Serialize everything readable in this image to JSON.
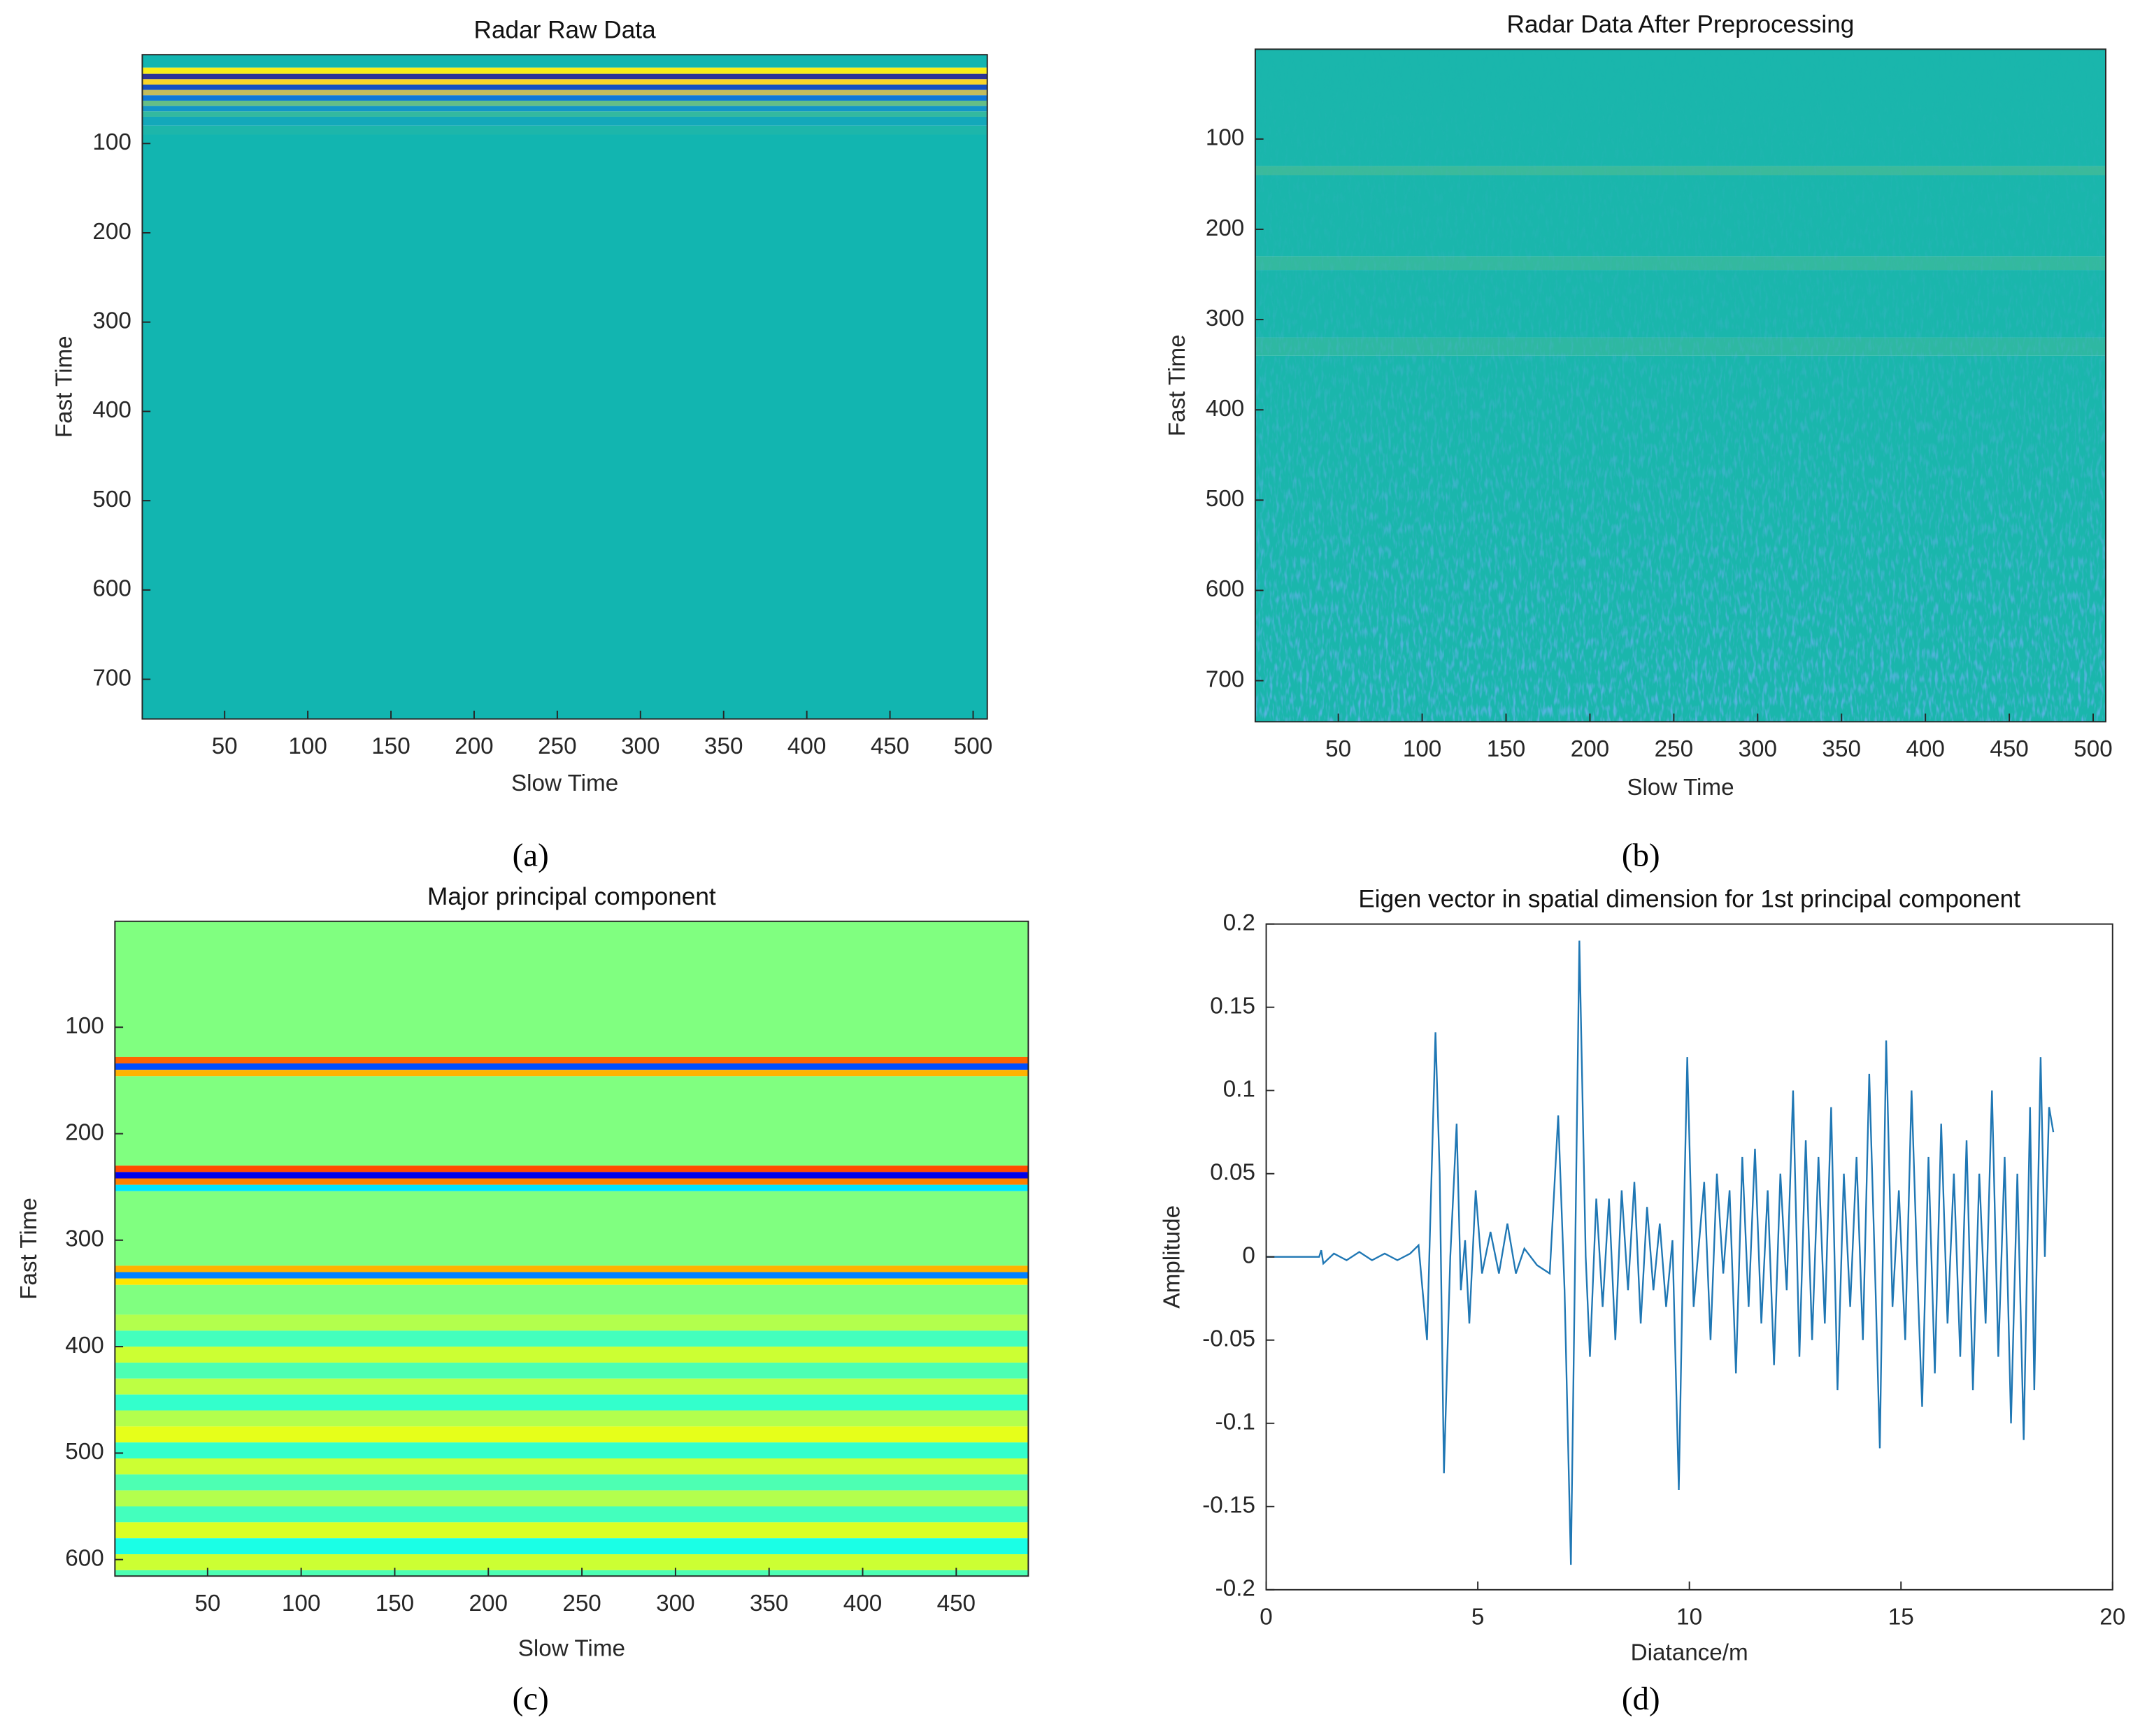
{
  "chart_data": [
    {
      "type": "heatmap",
      "title": "Radar Raw Data",
      "xlabel": "Slow Time",
      "ylabel": "Fast Time",
      "caption": "(a)",
      "xlim": [
        0.5,
        508.5
      ],
      "ylim": [
        0.5,
        744.5
      ],
      "xticks": [
        50,
        100,
        150,
        200,
        250,
        300,
        350,
        400,
        450,
        500
      ],
      "yticks": [
        100,
        200,
        300,
        400,
        500,
        600,
        700
      ],
      "y_reversed": true,
      "colormap": "parula",
      "clim": [
        -1,
        1
      ],
      "rows": [
        0.5,
        15,
        22,
        28,
        34,
        40,
        46,
        52,
        58,
        64,
        70,
        80,
        90
      ],
      "values": [
        0,
        0.95,
        -0.95,
        0.85,
        -0.8,
        0.6,
        -0.45,
        0.3,
        -0.2,
        0.12,
        -0.08,
        0.04,
        0
      ]
    },
    {
      "type": "heatmap",
      "title": "Radar Data After Preprocessing",
      "xlabel": "Slow Time",
      "ylabel": "Fast Time",
      "caption": "(b)",
      "xlim": [
        0.5,
        507.5
      ],
      "ylim": [
        0.5,
        745.5
      ],
      "xticks": [
        50,
        100,
        150,
        200,
        250,
        300,
        350,
        400,
        450,
        500
      ],
      "yticks": [
        100,
        200,
        300,
        400,
        500,
        600,
        700
      ],
      "y_reversed": true,
      "colormap": "parula",
      "clim": [
        -1,
        1
      ],
      "noise": true,
      "rows": [
        0.5,
        130,
        140,
        230,
        245,
        320,
        340
      ],
      "values": [
        0.03,
        0.15,
        0.03,
        0.12,
        0.03,
        0.1,
        0.03
      ]
    },
    {
      "type": "heatmap",
      "title": "Major principal component",
      "xlabel": "Slow Time",
      "ylabel": "Fast Time",
      "caption": "(c)",
      "xlim": [
        0.5,
        488.5
      ],
      "ylim": [
        0.5,
        615.5
      ],
      "xticks": [
        50,
        100,
        150,
        200,
        250,
        300,
        350,
        400,
        450
      ],
      "yticks": [
        100,
        200,
        300,
        400,
        500,
        600
      ],
      "y_reversed": true,
      "colormap": "jet",
      "clim": [
        -1,
        1
      ],
      "rows": [
        0.5,
        128,
        134,
        140,
        146,
        230,
        236,
        242,
        248,
        254,
        324,
        330,
        336,
        342,
        370,
        385,
        400,
        415,
        430,
        445,
        460,
        475,
        490,
        505,
        520,
        535,
        550,
        565,
        580,
        595,
        610
      ],
      "values": [
        0,
        0.55,
        -0.6,
        0.4,
        0,
        0.6,
        -0.8,
        0.5,
        -0.3,
        0,
        0.4,
        -0.5,
        0.3,
        0,
        0.1,
        -0.12,
        0.15,
        -0.1,
        0.12,
        -0.15,
        0.1,
        0.2,
        -0.15,
        0.15,
        -0.1,
        0.1,
        -0.12,
        0.18,
        -0.2,
        0.15,
        -0.1
      ]
    },
    {
      "type": "line",
      "title": "Eigen vector in spatial dimension for 1st principal component",
      "xlabel": "Diatance/m",
      "ylabel": "Amplitude",
      "caption": "(d)",
      "xlim": [
        0,
        20
      ],
      "ylim": [
        -0.2,
        0.2
      ],
      "xticks": [
        0,
        5,
        10,
        15,
        20
      ],
      "yticks": [
        0.2,
        0.15,
        0.1,
        0.05,
        0,
        -0.05,
        -0.1,
        -0.15,
        -0.2
      ],
      "color": "#1f77b4",
      "x": [
        0,
        1.25,
        1.3,
        1.35,
        1.6,
        1.9,
        2.2,
        2.5,
        2.8,
        3.1,
        3.4,
        3.6,
        3.8,
        4.0,
        4.1,
        4.2,
        4.35,
        4.5,
        4.6,
        4.7,
        4.8,
        4.95,
        5.1,
        5.3,
        5.5,
        5.7,
        5.9,
        6.1,
        6.4,
        6.7,
        6.9,
        7.05,
        7.2,
        7.3,
        7.4,
        7.55,
        7.65,
        7.8,
        7.95,
        8.1,
        8.25,
        8.4,
        8.55,
        8.7,
        8.85,
        9.0,
        9.15,
        9.3,
        9.45,
        9.6,
        9.75,
        9.85,
        9.95,
        10.1,
        10.2,
        10.35,
        10.5,
        10.65,
        10.8,
        10.95,
        11.1,
        11.25,
        11.4,
        11.55,
        11.7,
        11.85,
        12.0,
        12.15,
        12.3,
        12.45,
        12.6,
        12.75,
        12.9,
        13.05,
        13.2,
        13.35,
        13.5,
        13.65,
        13.8,
        13.95,
        14.1,
        14.25,
        14.4,
        14.5,
        14.65,
        14.8,
        14.95,
        15.1,
        15.25,
        15.4,
        15.5,
        15.65,
        15.8,
        15.95,
        16.1,
        16.25,
        16.4,
        16.55,
        16.7,
        16.85,
        17.0,
        17.15,
        17.3,
        17.45,
        17.6,
        17.75,
        17.9,
        18.05,
        18.15,
        18.3,
        18.4,
        18.5,
        18.6
      ],
      "values": [
        0,
        0,
        0.004,
        -0.004,
        0.002,
        -0.002,
        0.003,
        -0.002,
        0.002,
        -0.002,
        0.002,
        0.007,
        -0.05,
        0.135,
        0.05,
        -0.13,
        0,
        0.08,
        -0.02,
        0.01,
        -0.04,
        0.04,
        -0.01,
        0.015,
        -0.01,
        0.02,
        -0.01,
        0.005,
        -0.005,
        -0.01,
        0.085,
        -0.02,
        -0.185,
        0,
        0.19,
        0,
        -0.06,
        0.035,
        -0.03,
        0.035,
        -0.05,
        0.04,
        -0.02,
        0.045,
        -0.04,
        0.03,
        -0.02,
        0.02,
        -0.03,
        0.01,
        -0.14,
        0,
        0.12,
        -0.03,
        0,
        0.045,
        -0.05,
        0.05,
        -0.01,
        0.04,
        -0.07,
        0.06,
        -0.03,
        0.065,
        -0.04,
        0.04,
        -0.065,
        0.05,
        -0.02,
        0.1,
        -0.06,
        0.07,
        -0.05,
        0.06,
        -0.04,
        0.09,
        -0.08,
        0.05,
        -0.03,
        0.06,
        -0.05,
        0.11,
        -0.02,
        -0.115,
        0.13,
        -0.03,
        0.04,
        -0.05,
        0.1,
        -0.02,
        -0.09,
        0.06,
        -0.07,
        0.08,
        -0.04,
        0.05,
        -0.06,
        0.07,
        -0.08,
        0.05,
        -0.04,
        0.1,
        -0.06,
        0.06,
        -0.1,
        0.05,
        -0.11,
        0.09,
        -0.08,
        0.12,
        0,
        0.09,
        0.075
      ]
    }
  ]
}
